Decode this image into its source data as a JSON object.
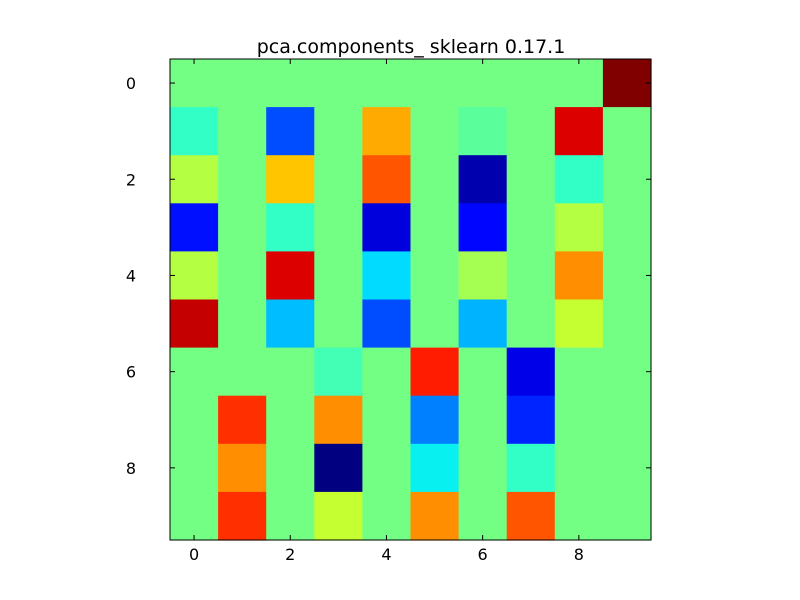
{
  "chart_data": {
    "type": "heatmap",
    "title": "pca.components_ sklearn 0.17.1",
    "xlabel": "",
    "ylabel": "",
    "x_ticks": [
      "0",
      "2",
      "4",
      "6",
      "8"
    ],
    "y_ticks": [
      "0",
      "2",
      "4",
      "6",
      "8"
    ],
    "x_range": [
      -0.5,
      9.5
    ],
    "y_range": [
      -0.5,
      9.5
    ],
    "colormap": "jet",
    "value_range": [
      0,
      1
    ],
    "grid": false,
    "rows": 10,
    "cols": 10,
    "values": [
      [
        0.49,
        0.49,
        0.49,
        0.49,
        0.49,
        0.49,
        0.49,
        0.49,
        0.49,
        1.0
      ],
      [
        0.41,
        0.49,
        0.2,
        0.49,
        0.73,
        0.49,
        0.46,
        0.49,
        0.92,
        0.49
      ],
      [
        0.57,
        0.49,
        0.7,
        0.49,
        0.82,
        0.49,
        0.04,
        0.49,
        0.41,
        0.49
      ],
      [
        0.14,
        0.49,
        0.41,
        0.49,
        0.08,
        0.49,
        0.13,
        0.49,
        0.57,
        0.49
      ],
      [
        0.57,
        0.49,
        0.92,
        0.49,
        0.34,
        0.49,
        0.55,
        0.49,
        0.76,
        0.49
      ],
      [
        0.94,
        0.49,
        0.31,
        0.49,
        0.2,
        0.49,
        0.3,
        0.49,
        0.59,
        0.49
      ],
      [
        0.49,
        0.49,
        0.49,
        0.43,
        0.49,
        0.88,
        0.49,
        0.09,
        0.49,
        0.49
      ],
      [
        0.49,
        0.86,
        0.49,
        0.76,
        0.49,
        0.25,
        0.49,
        0.16,
        0.49,
        0.49
      ],
      [
        0.49,
        0.76,
        0.49,
        0.0,
        0.49,
        0.36,
        0.49,
        0.41,
        0.49,
        0.49
      ],
      [
        0.49,
        0.86,
        0.49,
        0.59,
        0.49,
        0.76,
        0.49,
        0.82,
        0.49,
        0.49
      ]
    ]
  }
}
